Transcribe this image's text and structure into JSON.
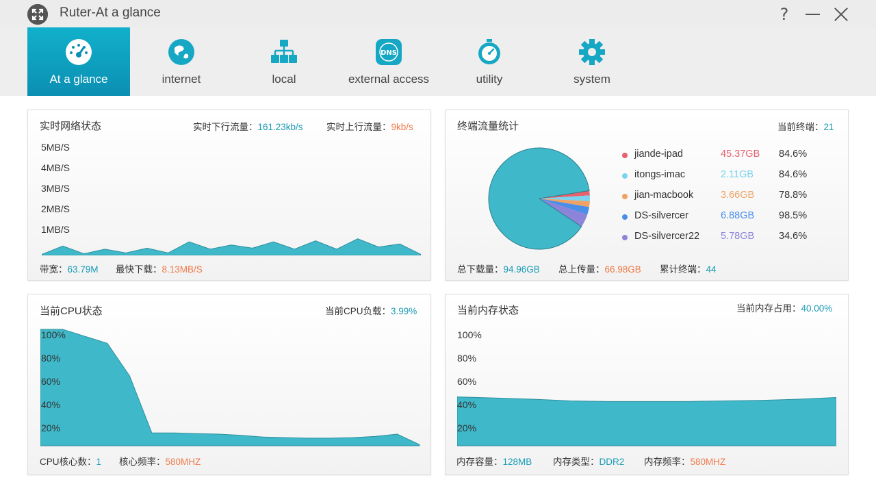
{
  "window": {
    "title": "Ruter-At a glance",
    "help_glyph": "?"
  },
  "nav": {
    "tabs": [
      {
        "label": "At a glance",
        "icon": "dashboard-icon",
        "active": true
      },
      {
        "label": "internet",
        "icon": "globe-icon",
        "active": false
      },
      {
        "label": "local",
        "icon": "network-icon",
        "active": false
      },
      {
        "label": "external access",
        "icon": "dns-icon",
        "active": false
      },
      {
        "label": "utility",
        "icon": "stopwatch-icon",
        "active": false
      },
      {
        "label": "system",
        "icon": "gear-icon",
        "active": false
      }
    ]
  },
  "colors": {
    "accent": "#1a9cb5",
    "fill": "#3fb8c9",
    "orange": "#f07a4a"
  },
  "network": {
    "title": "实时网络状态",
    "down_label": "实时下行流量：",
    "down_value": "161.23kb/s",
    "up_label": "实时上行流量：",
    "up_value": "9kb/s",
    "y_ticks": [
      "5MB/S",
      "4MB/S",
      "3MB/S",
      "2MB/S",
      "1MB/S"
    ],
    "bandwidth_label": "带宽：",
    "bandwidth_value": "63.79M",
    "fastest_label": "最快下载：",
    "fastest_value": "8.13MB/S"
  },
  "terminals": {
    "title": "终端流量统计",
    "current_label": "当前终端：",
    "current_value": "21",
    "devices": [
      {
        "name": "jiande-ipad",
        "size": "45.37GB",
        "pct": "84.6%",
        "color": "#e8616e"
      },
      {
        "name": "itongs-imac",
        "size": "2.11GB",
        "pct": "84.6%",
        "color": "#7ad3ef"
      },
      {
        "name": "jian-macbook",
        "size": "3.66GB",
        "pct": "78.8%",
        "color": "#f0a264"
      },
      {
        "name": "DS-silvercer",
        "size": "6.88GB",
        "pct": "98.5%",
        "color": "#4a8ee6"
      },
      {
        "name": "DS-silvercer22",
        "size": "5.78GB",
        "pct": "34.6%",
        "color": "#8b84d8"
      }
    ],
    "total_down_label": "总下载量：",
    "total_down_value": "94.96GB",
    "total_up_label": "总上传量：",
    "total_up_value": "66.98GB",
    "cumulative_label": "累计终端：",
    "cumulative_value": "44"
  },
  "cpu": {
    "title": "当前CPU状态",
    "load_label": "当前CPU负载：",
    "load_value": "3.99%",
    "y_ticks": [
      "100%",
      "80%",
      "60%",
      "40%",
      "20%"
    ],
    "cores_label": "CPU核心数：",
    "cores_value": "1",
    "freq_label": "核心频率：",
    "freq_value": "580MHZ"
  },
  "memory": {
    "title": "当前内存状态",
    "usage_label": "当前内存占用：",
    "usage_value": "40.00%",
    "y_ticks": [
      "100%",
      "80%",
      "60%",
      "40%",
      "20%"
    ],
    "capacity_label": "内存容量：",
    "capacity_value": "128MB",
    "type_label": "内存类型：",
    "type_value": "DDR2",
    "freq_label": "内存频率：",
    "freq_value": "580MHZ"
  },
  "chart_data": [
    {
      "type": "area",
      "title": "",
      "y_unit": "MB/S",
      "ylim": [
        0,
        5
      ],
      "series": [
        {
          "values": [
            0.05,
            0.45,
            0.08,
            0.3,
            0.12,
            0.35,
            0.12,
            0.65,
            0.3,
            0.5,
            0.35,
            0.65,
            0.3,
            0.7,
            0.3,
            0.8,
            0.4,
            0.55,
            0.05
          ]
        }
      ]
    },
    {
      "type": "pie",
      "title": "",
      "categories": [
        "jiande-ipad",
        "itongs-imac",
        "jian-macbook",
        "DS-silvercer",
        "DS-silvercer22",
        ""
      ],
      "values": [
        4.5,
        5.5,
        5.5,
        7.5,
        12.5,
        264.5
      ]
    },
    {
      "type": "area",
      "title": "",
      "y_unit": "%",
      "ylim": [
        0,
        100
      ],
      "series": [
        {
          "values": [
            100,
            100,
            94,
            88,
            60,
            11,
            11,
            10.5,
            10,
            9,
            7.5,
            7,
            6.5,
            6.5,
            7,
            8,
            10,
            1
          ]
        }
      ]
    },
    {
      "type": "area",
      "title": "",
      "y_unit": "%",
      "ylim": [
        0,
        100
      ],
      "series": [
        {
          "values": [
            42,
            41,
            40,
            38.5,
            38,
            38,
            38,
            38.5,
            39,
            40,
            41.5
          ]
        }
      ]
    }
  ]
}
